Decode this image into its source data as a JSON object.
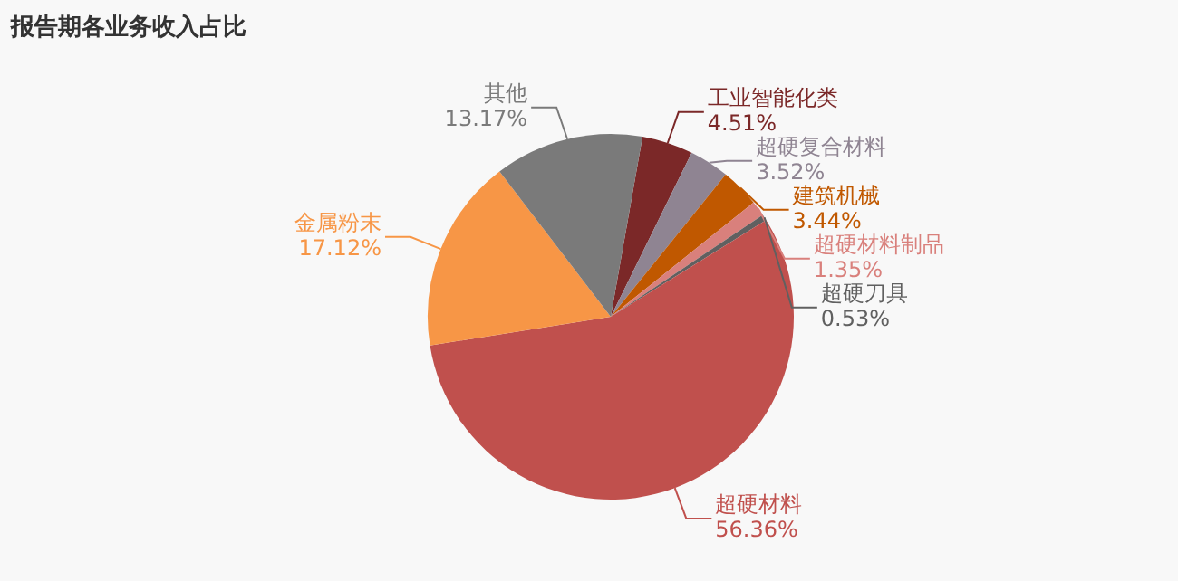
{
  "chart_data": {
    "type": "pie",
    "title": "报告期各业务收入占比",
    "categories": [
      "工业智能化类",
      "超硬复合材料",
      "建筑机械",
      "超硬材料制品",
      "超硬刀具",
      "超硬材料",
      "金属粉末",
      "其他"
    ],
    "values": [
      4.51,
      3.52,
      3.44,
      1.35,
      0.53,
      56.36,
      17.12,
      13.17
    ],
    "colors": [
      "#7b2828",
      "#8f8492",
      "#c05800",
      "#d9807c",
      "#606060",
      "#c0504d",
      "#f79646",
      "#7a7a7a"
    ],
    "value_labels": [
      "4.51%",
      "3.52%",
      "3.44%",
      "1.35%",
      "0.53%",
      "56.36%",
      "17.12%",
      "13.17%"
    ],
    "legend": false
  }
}
